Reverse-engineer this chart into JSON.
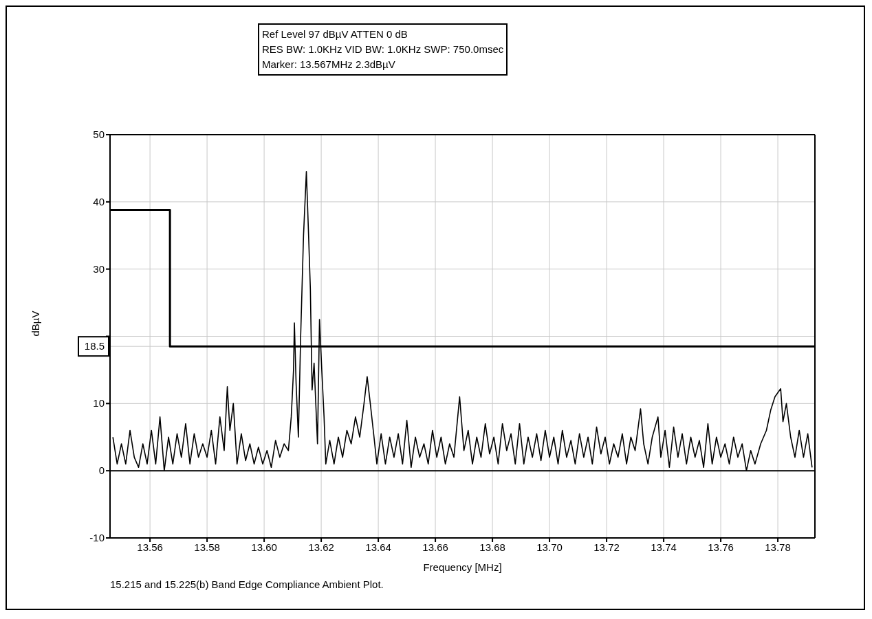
{
  "chart_data": {
    "type": "line",
    "xlabel": "Frequency [MHz]",
    "ylabel": "dBµV",
    "xlim": [
      13.546,
      13.793
    ],
    "xticks": [
      13.56,
      13.58,
      {
        "value": 13.6,
        "label": "13.60"
      },
      13.62,
      13.64,
      13.66,
      13.68,
      {
        "value": 13.7,
        "label": "13.70"
      },
      13.72,
      13.74,
      13.76,
      13.78
    ],
    "ylim": [
      -10,
      50
    ],
    "yticks": [
      -10,
      0,
      10,
      {
        "value": 18.5,
        "label": "18.5"
      },
      {
        "value": 20,
        "label": null
      },
      30,
      40,
      50
    ],
    "grid": true,
    "marker": "none",
    "line_style": "solid",
    "ref_lines": [
      {
        "axis": "y",
        "value": 0,
        "color": "#000000"
      }
    ],
    "annotations": [
      "Ref Level 97 dBµV    ATTEN 0 dB",
      "RES BW: 1.0KHz  VID BW: 1.0KHz  SWP: 750.0msec",
      "Marker: 13.567MHz  2.3dBµV",
      "15.215 and 15.225(b) Band Edge Compliance Ambient Plot."
    ],
    "series": [
      {
        "type": "step",
        "color": "#000000",
        "x": [
          13.546,
          13.567,
          13.793
        ],
        "values": [
          38.8,
          18.5,
          18.5
        ]
      },
      {
        "type": "line",
        "color": "#000000",
        "x": [
          13.547,
          13.5485,
          13.55,
          13.5515,
          13.553,
          13.5545,
          13.556,
          13.5575,
          13.559,
          13.5605,
          13.562,
          13.5635,
          13.565,
          13.5665,
          13.568,
          13.5695,
          13.571,
          13.5725,
          13.574,
          13.5755,
          13.577,
          13.5785,
          13.58,
          13.5815,
          13.583,
          13.5845,
          13.586,
          13.5871,
          13.588,
          13.5892,
          13.5905,
          13.592,
          13.5935,
          13.595,
          13.5965,
          13.598,
          13.5995,
          13.601,
          13.6025,
          13.604,
          13.6055,
          13.607,
          13.6085,
          13.6095,
          13.6103,
          13.6106,
          13.6112,
          13.612,
          13.6128,
          13.6138,
          13.6148,
          13.6155,
          13.6162,
          13.6168,
          13.6175,
          13.6187,
          13.6194,
          13.6202,
          13.621,
          13.6216,
          13.623,
          13.6245,
          13.626,
          13.6275,
          13.629,
          13.6305,
          13.632,
          13.6335,
          13.635,
          13.6361,
          13.6372,
          13.6385,
          13.6395,
          13.641,
          13.6425,
          13.644,
          13.6455,
          13.647,
          13.6485,
          13.65,
          13.6515,
          13.653,
          13.6545,
          13.656,
          13.6575,
          13.659,
          13.6605,
          13.662,
          13.6635,
          13.665,
          13.6665,
          13.6685,
          13.67,
          13.6715,
          13.673,
          13.6745,
          13.676,
          13.6775,
          13.679,
          13.6805,
          13.682,
          13.6835,
          13.685,
          13.6865,
          13.688,
          13.6895,
          13.691,
          13.6925,
          13.694,
          13.6955,
          13.697,
          13.6985,
          13.7,
          13.7015,
          13.703,
          13.7045,
          13.706,
          13.7075,
          13.709,
          13.7105,
          13.712,
          13.7135,
          13.715,
          13.7165,
          13.718,
          13.7195,
          13.721,
          13.7225,
          13.724,
          13.7255,
          13.727,
          13.7285,
          13.73,
          13.7319,
          13.733,
          13.7345,
          13.736,
          13.738,
          13.739,
          13.7405,
          13.742,
          13.7435,
          13.745,
          13.7465,
          13.748,
          13.7495,
          13.751,
          13.7525,
          13.754,
          13.7555,
          13.757,
          13.7585,
          13.76,
          13.7615,
          13.763,
          13.7645,
          13.766,
          13.7675,
          13.769,
          13.7705,
          13.772,
          13.774,
          13.776,
          13.7775,
          13.779,
          13.781,
          13.7818,
          13.783,
          13.7845,
          13.786,
          13.7875,
          13.789,
          13.7905,
          13.792
        ],
        "values": [
          5,
          1,
          4,
          1,
          6,
          2,
          0.5,
          4,
          1,
          6,
          1,
          8,
          0,
          5,
          1,
          5.5,
          2,
          7,
          1,
          5.5,
          2,
          4,
          2,
          6,
          1,
          8,
          3,
          12.5,
          6,
          10,
          1,
          5.5,
          1.5,
          4,
          1,
          3.5,
          1,
          3,
          0.5,
          4.5,
          2,
          4,
          3,
          8,
          15,
          22,
          13,
          5,
          20,
          35,
          44.5,
          36,
          27,
          12,
          16,
          4,
          22.5,
          15,
          8,
          1,
          4.5,
          1,
          5,
          2,
          6,
          4,
          8,
          5,
          10,
          14,
          10,
          5,
          1,
          5.5,
          1,
          5,
          2,
          5.5,
          1,
          7.5,
          0.5,
          5,
          2,
          4,
          1,
          6,
          2,
          5,
          1,
          4,
          2,
          11,
          3,
          6,
          1,
          5,
          2,
          7,
          2.5,
          5,
          1,
          7,
          3,
          5.5,
          1,
          7,
          1,
          5,
          2,
          5.5,
          1.5,
          6,
          2,
          5,
          1,
          6,
          2,
          4.5,
          1,
          5.5,
          2,
          5,
          1,
          6.5,
          2.5,
          5,
          1,
          4,
          2,
          5.5,
          1,
          5,
          3,
          9.2,
          4,
          1,
          5,
          8,
          2,
          6,
          0.5,
          6.5,
          2,
          5.5,
          1,
          5,
          2,
          4.5,
          0.5,
          7,
          1,
          5,
          2,
          4,
          1,
          5,
          2,
          4,
          0,
          3,
          1,
          4,
          6,
          9,
          11,
          12.2,
          7.3,
          10,
          5,
          2,
          6,
          2,
          5.5,
          0.5
        ]
      }
    ]
  }
}
